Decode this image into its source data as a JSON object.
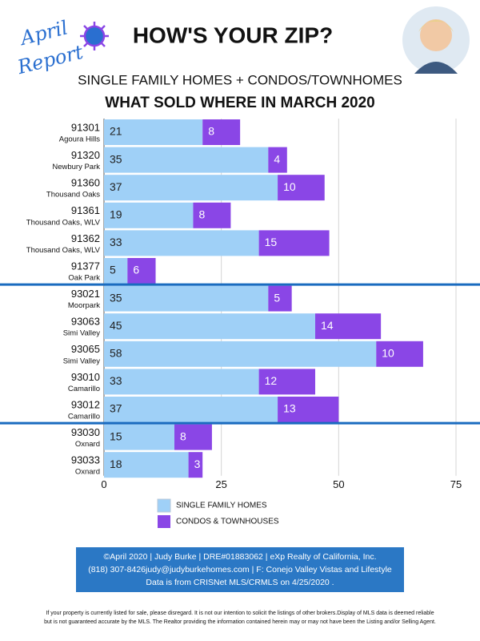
{
  "header": {
    "badge": [
      "April",
      "Report"
    ],
    "title": "HOW'S YOUR ZIP?"
  },
  "chart_data": {
    "type": "bar",
    "orientation": "horizontal",
    "stacked": true,
    "subtitle": "SINGLE FAMILY HOMES + CONDOS/TOWNHOMES",
    "title": "WHAT SOLD WHERE IN MARCH 2020",
    "categories": [
      "91301",
      "91320",
      "91360",
      "91361",
      "91362",
      "91377",
      "93021",
      "93063",
      "93065",
      "93010",
      "93012",
      "93030",
      "93033"
    ],
    "areas": [
      "Agoura Hills",
      "Newbury Park",
      "Thousand Oaks",
      "Thousand Oaks, WLV",
      "Thousand Oaks, WLV",
      "Oak Park",
      "Moorpark",
      "Simi Valley",
      "Simi Valley",
      "Camarillo",
      "Camarillo",
      "Oxnard",
      "Oxnard"
    ],
    "series": [
      {
        "name": "SINGLE FAMILY HOMES",
        "color": "#9fd0f7",
        "values": [
          21,
          35,
          37,
          19,
          33,
          5,
          35,
          45,
          58,
          33,
          37,
          15,
          18
        ]
      },
      {
        "name": "CONDOS & TOWNHOUSES",
        "color": "#8a46e6",
        "values": [
          8,
          4,
          10,
          8,
          15,
          6,
          5,
          14,
          10,
          12,
          13,
          8,
          3
        ]
      }
    ],
    "xlim": [
      0,
      75
    ],
    "xticks": [
      0,
      25,
      50,
      75
    ],
    "grid": true,
    "dividers_after": [
      5,
      10
    ]
  },
  "footer": {
    "lines": [
      "©April 2020  |  Judy Burke  |  DRE#01883062  |  eXp Realty of California, Inc.",
      "(818) 307-8426judy@judyburkehomes.com | F: Conejo Valley Vistas and Lifestyle",
      "Data is from CRISNet MLS/CRMLS on 4/25/2020 ."
    ]
  },
  "disclaimer": {
    "lines": [
      "If your property is currently listed for sale, please disregard. It is not our intention to solicit the listings of other brokers.Display of MLS data is deemed reliable",
      "but is not guaranteed accurate by the MLS. The Realtor providing the information contained herein may or may not have been the Listing and/or Selling Agent."
    ]
  }
}
